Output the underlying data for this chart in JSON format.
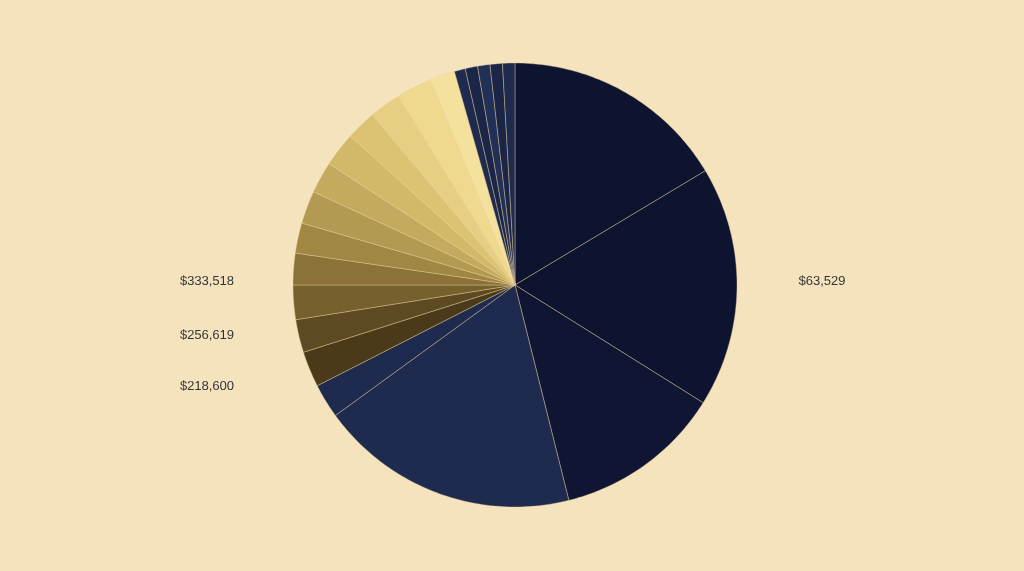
{
  "chart_data": {
    "type": "pie",
    "categories": [
      null,
      null,
      null,
      null,
      null,
      null,
      null,
      null,
      null,
      null,
      null,
      null,
      null,
      null,
      null,
      null,
      null,
      null,
      null,
      null,
      null,
      null
    ],
    "values": [
      16.4,
      17.5,
      12.2,
      18.9,
      2.5,
      2.6,
      2.4,
      2.5,
      2.3,
      2.2,
      2.4,
      2.3,
      2.5,
      2.2,
      2.3,
      2.6,
      1.8,
      0.8,
      0.9,
      0.9,
      0.9,
      0.9
    ],
    "colors": [
      "#0e1430",
      "#0e1430",
      "#0f1532",
      "#1e2a4e",
      "#1e2a4e",
      "#4a3a1a",
      "#5e4a22",
      "#75602e",
      "#8a7238",
      "#a08744",
      "#b39a52",
      "#c4aa5e",
      "#d2b96a",
      "#dcc374",
      "#e6cf82",
      "#efd98e",
      "#f5e19e",
      "#1e2a4e",
      "#1b2548",
      "#223058",
      "#1b2548",
      "#1e2a4e"
    ],
    "annotations": [
      "$333,518",
      "$256,619",
      "$218,600",
      "$63,529"
    ]
  }
}
